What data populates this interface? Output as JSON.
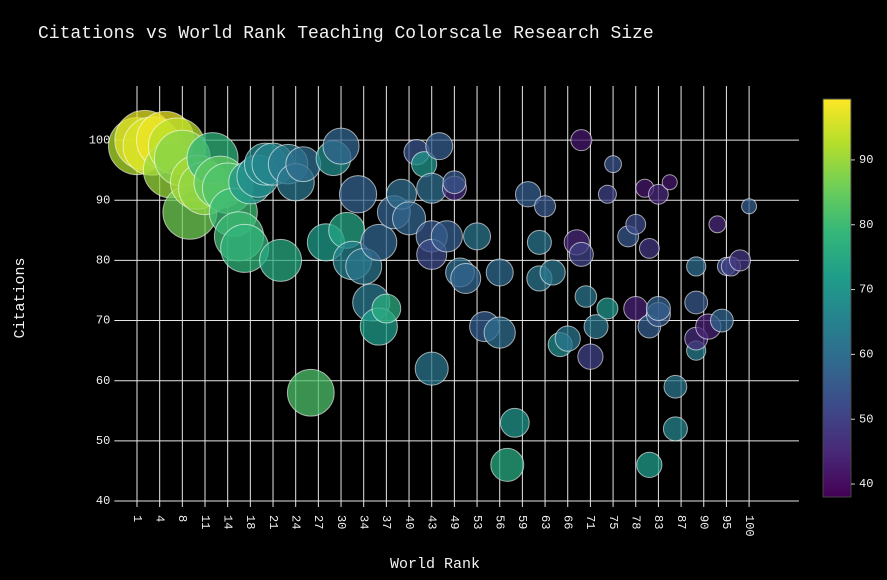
{
  "chart_data": {
    "type": "scatter",
    "title": "Citations vs World Rank Teaching Colorscale Research Size",
    "x_label": "World Rank",
    "y_label": "Citations",
    "xlim": [
      -2,
      111
    ],
    "ylim": [
      39,
      109
    ],
    "xticks": [
      1,
      4,
      8,
      11,
      14,
      18,
      21,
      24,
      27,
      30,
      34,
      37,
      40,
      43,
      49,
      53,
      56,
      59,
      63,
      66,
      71,
      75,
      78,
      83,
      87,
      90,
      95,
      100
    ],
    "yticks": [
      40,
      50,
      60,
      70,
      80,
      90,
      100
    ],
    "grid": true,
    "colorscale": [
      "#440154",
      "#482878",
      "#3e4989",
      "#31688e",
      "#26828e",
      "#1f9e89",
      "#35b779",
      "#6ece58",
      "#b5de2b",
      "#fde725"
    ],
    "clim": [
      38,
      99.4
    ],
    "cticks": [
      40,
      50,
      60,
      70,
      80,
      90
    ],
    "x": [
      1,
      2,
      3,
      5,
      6,
      7,
      8,
      9,
      10,
      11,
      12,
      13,
      14,
      15,
      16,
      17,
      18,
      19,
      20,
      21,
      22,
      23,
      24,
      25,
      26,
      28,
      29,
      30,
      31,
      32,
      33,
      34,
      35,
      36,
      37,
      36,
      38,
      39,
      40,
      41,
      42,
      43,
      43,
      43,
      43,
      45,
      47,
      49,
      49,
      50,
      51,
      53,
      54,
      56,
      56,
      57,
      58,
      60,
      62,
      62,
      63,
      64,
      65,
      66,
      68,
      69,
      69,
      70,
      71,
      72,
      74,
      75,
      74,
      77,
      78,
      78,
      80,
      81,
      81,
      81,
      83,
      83,
      83,
      85,
      86,
      86,
      89,
      89,
      89,
      89,
      91,
      93,
      94,
      95,
      96,
      98,
      100
    ],
    "y": [
      99,
      100,
      99,
      100,
      95,
      99,
      97,
      88,
      93,
      92,
      97,
      93,
      92,
      88,
      84,
      82,
      93,
      94,
      96,
      96,
      80,
      96,
      93,
      96,
      58,
      83,
      97,
      99,
      85,
      80,
      91,
      79,
      73,
      69,
      72,
      83,
      88,
      91,
      87,
      98,
      96,
      92,
      84,
      81,
      62,
      99,
      84,
      92,
      93,
      78,
      77,
      84,
      69,
      78,
      68,
      46,
      53,
      91,
      83,
      77,
      89,
      78,
      66,
      67,
      83,
      81,
      100,
      74,
      64,
      69,
      72,
      96,
      91,
      84,
      86,
      72,
      92,
      82,
      69,
      46,
      91,
      71,
      72,
      93,
      59,
      52,
      73,
      79,
      65,
      67,
      69,
      86,
      70,
      79,
      79,
      80,
      89
    ],
    "teaching": [
      92,
      97,
      96,
      98,
      90,
      93,
      88,
      86,
      91,
      89,
      78,
      84,
      82,
      80,
      80,
      78,
      70,
      68,
      67,
      66,
      75,
      63,
      62,
      60,
      82,
      72,
      68,
      58,
      74,
      65,
      57,
      62,
      63,
      72,
      76,
      58,
      57,
      60,
      58,
      54,
      70,
      60,
      55,
      52,
      62,
      56,
      56,
      46,
      55,
      60,
      58,
      62,
      56,
      59,
      60,
      75,
      70,
      56,
      62,
      62,
      55,
      62,
      68,
      62,
      45,
      50,
      42,
      62,
      50,
      62,
      70,
      54,
      50,
      55,
      52,
      44,
      42,
      48,
      56,
      72,
      45,
      55,
      57,
      42,
      62,
      66,
      55,
      60,
      64,
      46,
      44,
      45,
      58,
      52,
      50,
      48,
      56
    ],
    "research": [
      95,
      99,
      97,
      96,
      92,
      94,
      93,
      90,
      90,
      88,
      85,
      87,
      84,
      80,
      82,
      80,
      72,
      70,
      70,
      70,
      70,
      66,
      62,
      58,
      78,
      62,
      58,
      60,
      60,
      64,
      62,
      60,
      62,
      62,
      48,
      60,
      55,
      50,
      55,
      42,
      42,
      50,
      52,
      50,
      55,
      45,
      52,
      40,
      38,
      48,
      50,
      45,
      50,
      45,
      52,
      55,
      48,
      42,
      40,
      42,
      35,
      42,
      40,
      42,
      42,
      40,
      35,
      36,
      42,
      40,
      35,
      28,
      30,
      35,
      33,
      40,
      30,
      33,
      38,
      42,
      33,
      40,
      40,
      25,
      38,
      40,
      38,
      32,
      32,
      38,
      42,
      28,
      38,
      30,
      32,
      35,
      25
    ]
  }
}
